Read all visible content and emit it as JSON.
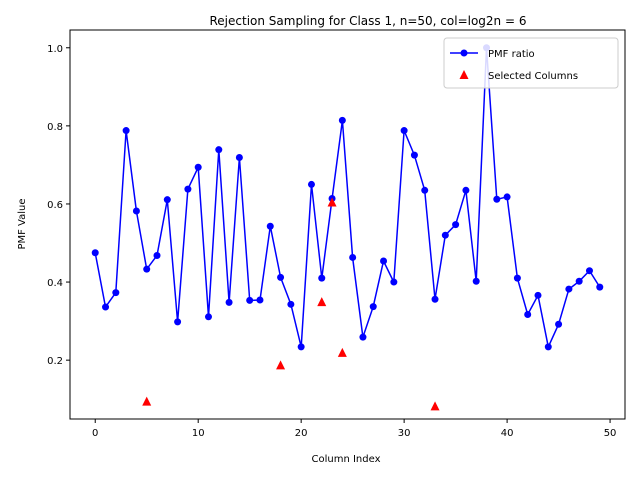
{
  "chart_data": {
    "type": "scatter",
    "title": "Rejection Sampling for Class 1, n=50, col=log2n = 6",
    "xlabel": "Column Index",
    "ylabel": "PMF Value",
    "xlim": [
      -2.45,
      51.45
    ],
    "ylim": [
      0.0493,
      1.0455
    ],
    "xticks": [
      0,
      10,
      20,
      30,
      40,
      50
    ],
    "yticks": [
      0.2,
      0.4,
      0.6,
      0.8,
      1.0
    ],
    "xtick_labels": [
      "0",
      "10",
      "20",
      "30",
      "40",
      "50"
    ],
    "ytick_labels": [
      "0.2",
      "0.4",
      "0.6",
      "0.8",
      "1.0"
    ],
    "grid": false,
    "legend_position": "top-right",
    "series": [
      {
        "name": "PMF ratio",
        "kind": "line-marker",
        "color": "#0000ff",
        "x": [
          0,
          1,
          2,
          3,
          4,
          5,
          6,
          7,
          8,
          9,
          10,
          11,
          12,
          13,
          14,
          15,
          16,
          17,
          18,
          19,
          20,
          21,
          22,
          23,
          24,
          25,
          26,
          27,
          28,
          29,
          30,
          31,
          32,
          33,
          34,
          35,
          36,
          37,
          38,
          39,
          40,
          41,
          42,
          43,
          44,
          45,
          46,
          47,
          48,
          49
        ],
        "y": [
          0.475,
          0.336,
          0.373,
          0.788,
          0.582,
          0.433,
          0.468,
          0.611,
          0.298,
          0.638,
          0.694,
          0.311,
          0.739,
          0.348,
          0.719,
          0.353,
          0.354,
          0.543,
          0.412,
          0.343,
          0.234,
          0.65,
          0.41,
          0.614,
          0.814,
          0.463,
          0.259,
          0.337,
          0.454,
          0.4,
          0.788,
          0.725,
          0.635,
          0.356,
          0.52,
          0.547,
          0.635,
          0.402,
          1.0,
          0.612,
          0.618,
          0.41,
          0.317,
          0.366,
          0.234,
          0.292,
          0.382,
          0.402,
          0.429,
          0.387
        ]
      },
      {
        "name": "Selected Columns",
        "kind": "scatter-triangle",
        "color": "#ff0000",
        "x": [
          5,
          18,
          22,
          23,
          24,
          33
        ],
        "y": [
          0.095,
          0.188,
          0.35,
          0.605,
          0.22,
          0.083
        ]
      }
    ]
  }
}
